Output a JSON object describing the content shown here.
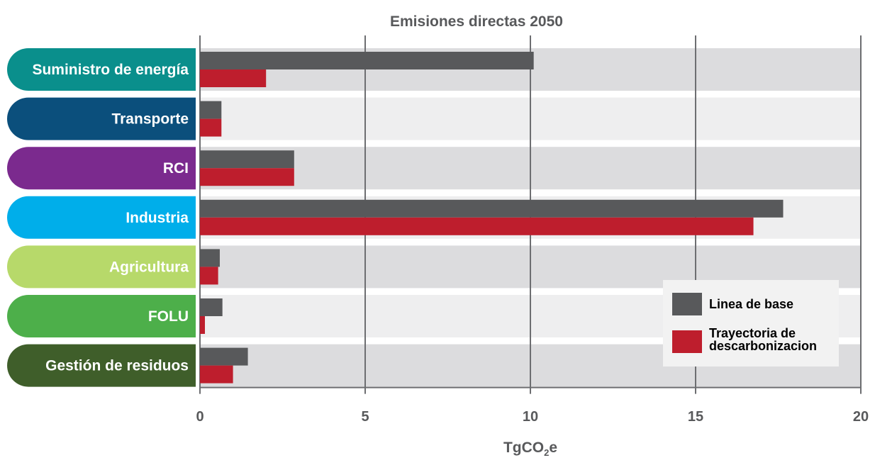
{
  "chart_data": {
    "type": "bar",
    "orientation": "horizontal",
    "title": "Emisiones directas 2050",
    "xlabel_main": "TgCO",
    "xlabel_sub": "2",
    "xlabel_suffix": "e",
    "xlim": [
      0,
      20
    ],
    "xticks": [
      "0",
      "5",
      "10",
      "15",
      "20"
    ],
    "grid": true,
    "legend_position": "bottom-right",
    "categories": [
      "Suministro de energía",
      "Transporte",
      "RCI",
      "Industria",
      "Agricultura",
      "FOLU",
      "Gestión de residuos"
    ],
    "category_colors": [
      "#0a8f8c",
      "#0b4f7c",
      "#7b2a8e",
      "#00aeea",
      "#b7d96a",
      "#4daf4a",
      "#3f5e2a"
    ],
    "series": [
      {
        "name": "Linea de base",
        "color": "#58595b",
        "values": [
          10.1,
          0.65,
          2.85,
          17.65,
          0.6,
          0.68,
          1.45
        ]
      },
      {
        "name": "Trayectoria de descarbonizacion",
        "color": "#be1e2d",
        "values": [
          2.0,
          0.65,
          2.85,
          16.75,
          0.55,
          0.15,
          1.0
        ]
      }
    ],
    "legend": {
      "line1": "Linea de base",
      "line2a": "Trayectoria de",
      "line2b": "descarbonizacion"
    }
  }
}
